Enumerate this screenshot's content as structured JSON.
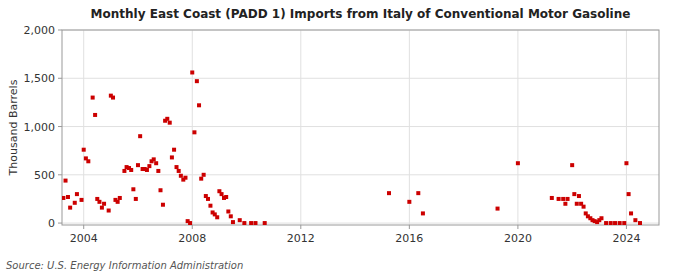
{
  "chart_data": {
    "type": "scatter",
    "title": "Monthly East Coast (PADD 1) Imports from Italy of Conventional Motor Gasoline",
    "y_label": "Thousand Barrels",
    "annotation": "Source: U.S. Energy Information Administration",
    "color": "#cc0000",
    "marker": "square",
    "grid": true,
    "xlim": [
      2003.2,
      2025.2
    ],
    "ylim": [
      -20,
      2000
    ],
    "xticks": [
      2004,
      2008,
      2012,
      2016,
      2020,
      2024
    ],
    "yticks": [
      0,
      500,
      {
        "value": 1000,
        "label": "1,000"
      },
      {
        "value": 1500,
        "label": "1,500"
      },
      {
        "value": 2000,
        "label": "2,000"
      }
    ],
    "x": [
      2003.25,
      2003.33,
      2003.42,
      2003.5,
      2003.67,
      2003.75,
      2003.92,
      2004.0,
      2004.08,
      2004.17,
      2004.33,
      2004.42,
      2004.5,
      2004.58,
      2004.67,
      2004.75,
      2004.92,
      2005.0,
      2005.08,
      2005.17,
      2005.25,
      2005.33,
      2005.5,
      2005.58,
      2005.67,
      2005.75,
      2005.83,
      2005.92,
      2006.0,
      2006.08,
      2006.17,
      2006.25,
      2006.33,
      2006.42,
      2006.5,
      2006.58,
      2006.67,
      2006.75,
      2006.83,
      2006.92,
      2007.0,
      2007.08,
      2007.17,
      2007.25,
      2007.33,
      2007.42,
      2007.5,
      2007.58,
      2007.67,
      2007.75,
      2007.83,
      2007.92,
      2008.0,
      2008.08,
      2008.17,
      2008.25,
      2008.33,
      2008.42,
      2008.5,
      2008.58,
      2008.67,
      2008.75,
      2008.83,
      2008.92,
      2009.0,
      2009.08,
      2009.17,
      2009.25,
      2009.33,
      2009.42,
      2009.5,
      2009.75,
      2009.92,
      2010.17,
      2010.33,
      2010.67,
      2015.25,
      2016.0,
      2016.33,
      2016.5,
      2019.25,
      2020.0,
      2021.25,
      2021.5,
      2021.67,
      2021.75,
      2021.83,
      2022.0,
      2022.08,
      2022.17,
      2022.25,
      2022.33,
      2022.42,
      2022.5,
      2022.58,
      2022.67,
      2022.75,
      2022.83,
      2022.92,
      2023.0,
      2023.08,
      2023.25,
      2023.42,
      2023.58,
      2023.75,
      2023.92,
      2024.0,
      2024.08,
      2024.17,
      2024.33,
      2024.5
    ],
    "values": [
      260,
      440,
      270,
      160,
      210,
      300,
      240,
      760,
      670,
      640,
      1300,
      1120,
      250,
      220,
      160,
      200,
      130,
      1320,
      1300,
      240,
      220,
      260,
      540,
      580,
      570,
      550,
      350,
      250,
      600,
      900,
      560,
      560,
      550,
      590,
      640,
      660,
      620,
      540,
      340,
      190,
      1060,
      1080,
      1040,
      680,
      760,
      580,
      540,
      490,
      450,
      470,
      20,
      0,
      1560,
      940,
      1470,
      1220,
      460,
      500,
      280,
      250,
      180,
      110,
      90,
      60,
      330,
      300,
      260,
      270,
      120,
      70,
      10,
      30,
      0,
      0,
      0,
      0,
      310,
      220,
      310,
      100,
      150,
      620,
      260,
      250,
      250,
      200,
      250,
      600,
      300,
      200,
      280,
      200,
      170,
      100,
      70,
      50,
      30,
      20,
      10,
      30,
      50,
      0,
      0,
      0,
      0,
      0,
      620,
      300,
      100,
      30,
      0
    ]
  }
}
